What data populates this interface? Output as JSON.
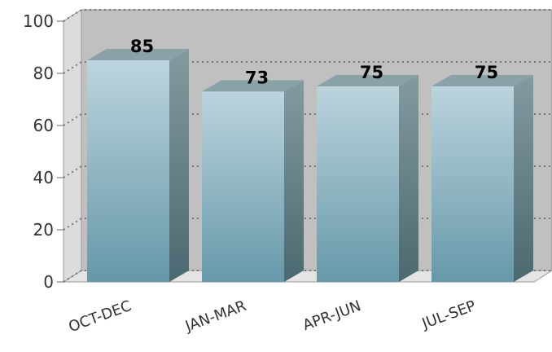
{
  "chart_data": {
    "type": "bar",
    "categories": [
      "OCT-DEC",
      "JAN-MAR",
      "APR-JUN",
      "JUL-SEP"
    ],
    "values": [
      85,
      73,
      75,
      75
    ],
    "color": "#7fa9b8",
    "ylim": [
      0,
      100
    ],
    "yticks": [
      0,
      20,
      40,
      60,
      80,
      100
    ],
    "grid": true
  }
}
